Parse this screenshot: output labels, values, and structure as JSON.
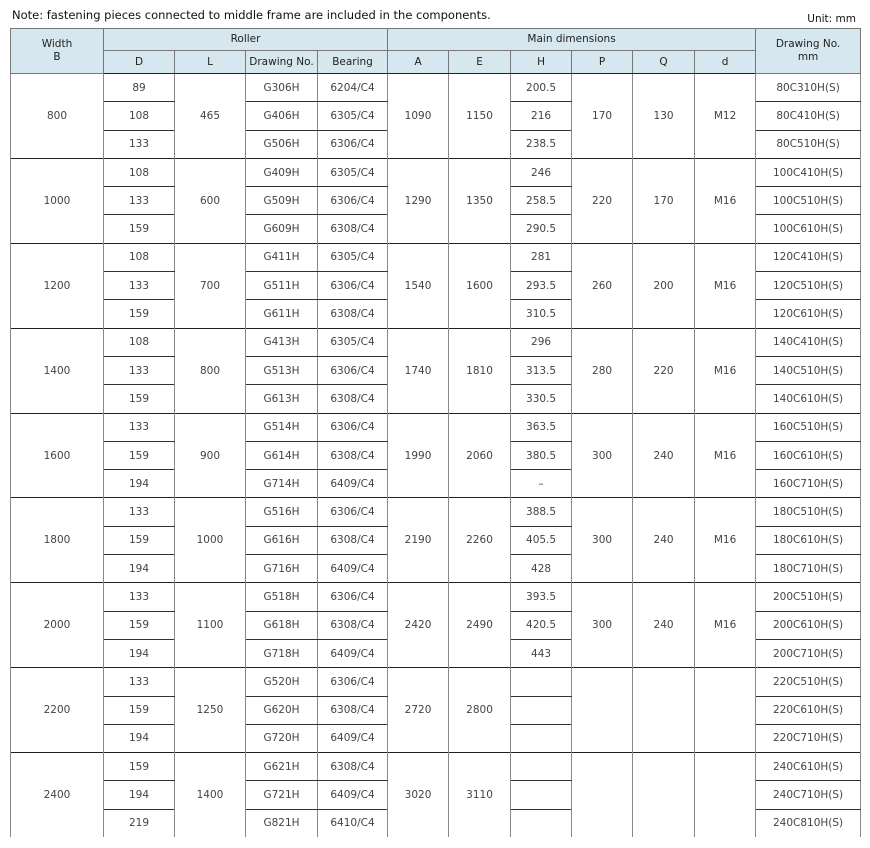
{
  "note": "Note: fastening pieces connected to middle frame are included in the components.",
  "unit": "Unit: mm",
  "header": {
    "width": "Width\nB",
    "roller": "Roller",
    "main": "Main dimensions",
    "drawing_no": "Drawing No.\nmm",
    "D": "D",
    "L": "L",
    "roller_drawing": "Drawing No.",
    "bearing": "Bearing",
    "A": "A",
    "E": "E",
    "H": "H",
    "P": "P",
    "Q": "Q",
    "d": "d"
  },
  "groups": [
    {
      "width": "800",
      "L": "465",
      "A": "1090",
      "E": "1150",
      "P": "170",
      "Q": "130",
      "d": "M12",
      "rows": [
        {
          "D": "89",
          "drawing": "G306H",
          "bearing": "6204/C4",
          "H": "200.5",
          "no": "80C310H(S)"
        },
        {
          "D": "108",
          "drawing": "G406H",
          "bearing": "6305/C4",
          "H": "216",
          "no": "80C410H(S)"
        },
        {
          "D": "133",
          "drawing": "G506H",
          "bearing": "6306/C4",
          "H": "238.5",
          "no": "80C510H(S)"
        }
      ]
    },
    {
      "width": "1000",
      "L": "600",
      "A": "1290",
      "E": "1350",
      "P": "220",
      "Q": "170",
      "d": "M16",
      "rows": [
        {
          "D": "108",
          "drawing": "G409H",
          "bearing": "6305/C4",
          "H": "246",
          "no": "100C410H(S)"
        },
        {
          "D": "133",
          "drawing": "G509H",
          "bearing": "6306/C4",
          "H": "258.5",
          "no": "100C510H(S)"
        },
        {
          "D": "159",
          "drawing": "G609H",
          "bearing": "6308/C4",
          "H": "290.5",
          "no": "100C610H(S)"
        }
      ]
    },
    {
      "width": "1200",
      "L": "700",
      "A": "1540",
      "E": "1600",
      "P": "260",
      "Q": "200",
      "d": "M16",
      "rows": [
        {
          "D": "108",
          "drawing": "G411H",
          "bearing": "6305/C4",
          "H": "281",
          "no": "120C410H(S)"
        },
        {
          "D": "133",
          "drawing": "G511H",
          "bearing": "6306/C4",
          "H": "293.5",
          "no": "120C510H(S)"
        },
        {
          "D": "159",
          "drawing": "G611H",
          "bearing": "6308/C4",
          "H": "310.5",
          "no": "120C610H(S)"
        }
      ]
    },
    {
      "width": "1400",
      "L": "800",
      "A": "1740",
      "E": "1810",
      "P": "280",
      "Q": "220",
      "d": "M16",
      "rows": [
        {
          "D": "108",
          "drawing": "G413H",
          "bearing": "6305/C4",
          "H": "296",
          "no": "140C410H(S)"
        },
        {
          "D": "133",
          "drawing": "G513H",
          "bearing": "6306/C4",
          "H": "313.5",
          "no": "140C510H(S)"
        },
        {
          "D": "159",
          "drawing": "G613H",
          "bearing": "6308/C4",
          "H": "330.5",
          "no": "140C610H(S)"
        }
      ]
    },
    {
      "width": "1600",
      "L": "900",
      "A": "1990",
      "E": "2060",
      "P": "300",
      "Q": "240",
      "d": "M16",
      "rows": [
        {
          "D": "133",
          "drawing": "G514H",
          "bearing": "6306/C4",
          "H": "363.5",
          "no": "160C510H(S)"
        },
        {
          "D": "159",
          "drawing": "G614H",
          "bearing": "6308/C4",
          "H": "380.5",
          "no": "160C610H(S)"
        },
        {
          "D": "194",
          "drawing": "G714H",
          "bearing": "6409/C4",
          "H": "–",
          "no": "160C710H(S)"
        }
      ]
    },
    {
      "width": "1800",
      "L": "1000",
      "A": "2190",
      "E": "2260",
      "P": "300",
      "Q": "240",
      "d": "M16",
      "rows": [
        {
          "D": "133",
          "drawing": "G516H",
          "bearing": "6306/C4",
          "H": "388.5",
          "no": "180C510H(S)"
        },
        {
          "D": "159",
          "drawing": "G616H",
          "bearing": "6308/C4",
          "H": "405.5",
          "no": "180C610H(S)"
        },
        {
          "D": "194",
          "drawing": "G716H",
          "bearing": "6409/C4",
          "H": "428",
          "no": "180C710H(S)"
        }
      ]
    },
    {
      "width": "2000",
      "L": "1100",
      "A": "2420",
      "E": "2490",
      "P": "300",
      "Q": "240",
      "d": "M16",
      "rows": [
        {
          "D": "133",
          "drawing": "G518H",
          "bearing": "6306/C4",
          "H": "393.5",
          "no": "200C510H(S)"
        },
        {
          "D": "159",
          "drawing": "G618H",
          "bearing": "6308/C4",
          "H": "420.5",
          "no": "200C610H(S)"
        },
        {
          "D": "194",
          "drawing": "G718H",
          "bearing": "6409/C4",
          "H": "443",
          "no": "200C710H(S)"
        }
      ]
    },
    {
      "width": "2200",
      "L": "1250",
      "A": "2720",
      "E": "2800",
      "P": "",
      "Q": "",
      "d": "",
      "rows": [
        {
          "D": "133",
          "drawing": "G520H",
          "bearing": "6306/C4",
          "H": "",
          "no": "220C510H(S)"
        },
        {
          "D": "159",
          "drawing": "G620H",
          "bearing": "6308/C4",
          "H": "",
          "no": "220C610H(S)"
        },
        {
          "D": "194",
          "drawing": "G720H",
          "bearing": "6409/C4",
          "H": "",
          "no": "220C710H(S)"
        }
      ]
    },
    {
      "width": "2400",
      "L": "1400",
      "A": "3020",
      "E": "3110",
      "P": "",
      "Q": "",
      "d": "",
      "rows": [
        {
          "D": "159",
          "drawing": "G621H",
          "bearing": "6308/C4",
          "H": "",
          "no": "240C610H(S)"
        },
        {
          "D": "194",
          "drawing": "G721H",
          "bearing": "6409/C4",
          "H": "",
          "no": "240C710H(S)"
        },
        {
          "D": "219",
          "drawing": "G821H",
          "bearing": "6410/C4",
          "H": "",
          "no": "240C810H(S)"
        }
      ]
    }
  ]
}
